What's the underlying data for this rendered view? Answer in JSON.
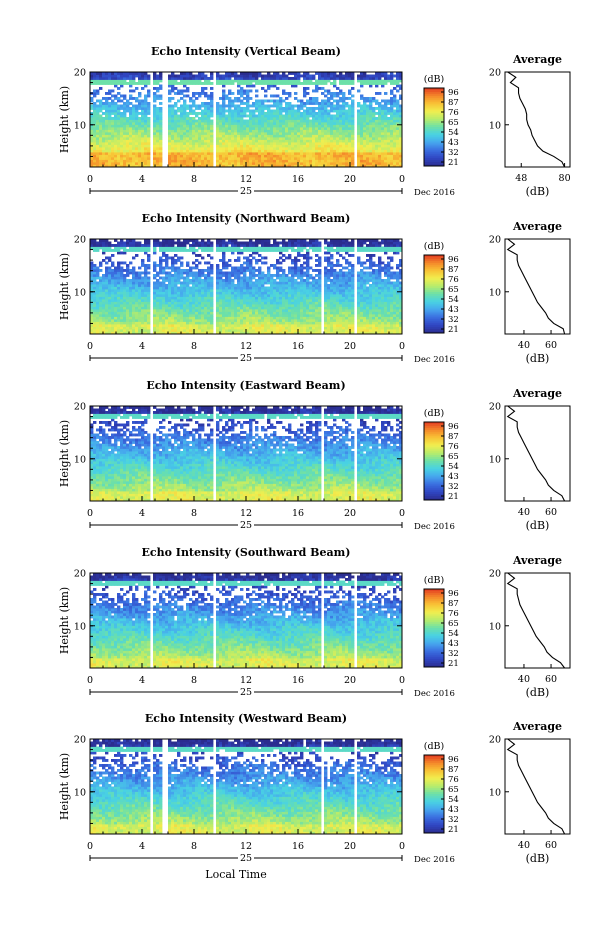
{
  "figure": {
    "bottom_xlabel": "Local Time"
  },
  "chart_data": [
    {
      "type": "heatmap",
      "title": "Echo Intensity (Vertical Beam)",
      "ylabel": "Height (km)",
      "xlim": [
        0,
        24
      ],
      "ylim": [
        2,
        20
      ],
      "x_ticks": [
        "0",
        "4",
        "8",
        "12",
        "16",
        "20",
        "0"
      ],
      "y_ticks": [
        "10",
        "20"
      ],
      "date_label": "25",
      "month_label": "Dec 2016",
      "colorbar": {
        "unit": "(dB)",
        "ticks": [
          "96",
          "87",
          "76",
          "65",
          "54",
          "43",
          "32",
          "21"
        ]
      },
      "data_gaps_hours": [
        [
          4.6,
          4.9
        ],
        [
          5.6,
          5.9
        ],
        [
          9.5,
          9.8
        ],
        [
          20.3,
          20.6
        ]
      ],
      "profile": {
        "title": "Average",
        "xlabel": "(dB)",
        "xlim": [
          36,
          84
        ],
        "x_ticks": [
          "48",
          "80"
        ],
        "heights": [
          2,
          3,
          4,
          5,
          6,
          7,
          8,
          9,
          10,
          11,
          12,
          13,
          14,
          15,
          16,
          17,
          18,
          19,
          20
        ],
        "values": [
          80,
          78,
          72,
          64,
          60,
          58,
          56,
          55,
          53,
          52,
          52,
          51,
          49,
          47,
          46,
          46,
          40,
          44,
          38
        ]
      }
    },
    {
      "type": "heatmap",
      "title": "Echo Intensity (Northward Beam)",
      "ylabel": "Height (km)",
      "xlim": [
        0,
        24
      ],
      "ylim": [
        2,
        20
      ],
      "x_ticks": [
        "0",
        "4",
        "8",
        "12",
        "16",
        "20",
        "0"
      ],
      "y_ticks": [
        "10",
        "20"
      ],
      "date_label": "25",
      "month_label": "Dec 2016",
      "colorbar": {
        "unit": "(dB)",
        "ticks": [
          "96",
          "87",
          "76",
          "65",
          "54",
          "43",
          "32",
          "21"
        ]
      },
      "data_gaps_hours": [
        [
          4.6,
          4.9
        ],
        [
          9.5,
          9.8
        ],
        [
          17.7,
          18.0
        ],
        [
          20.3,
          20.6
        ]
      ],
      "profile": {
        "title": "Average",
        "xlabel": "(dB)",
        "xlim": [
          26,
          74
        ],
        "x_ticks": [
          "40",
          "60"
        ],
        "heights": [
          2,
          3,
          4,
          5,
          6,
          7,
          8,
          9,
          10,
          11,
          12,
          13,
          14,
          15,
          16,
          17,
          18,
          19,
          20
        ],
        "values": [
          70,
          69,
          62,
          58,
          56,
          53,
          50,
          48,
          46,
          44,
          42,
          40,
          38,
          36,
          35,
          35,
          28,
          33,
          28
        ]
      }
    },
    {
      "type": "heatmap",
      "title": "Echo Intensity (Eastward Beam)",
      "ylabel": "Height (km)",
      "xlim": [
        0,
        24
      ],
      "ylim": [
        2,
        20
      ],
      "x_ticks": [
        "0",
        "4",
        "8",
        "12",
        "16",
        "20",
        "0"
      ],
      "y_ticks": [
        "10",
        "20"
      ],
      "date_label": "25",
      "month_label": "Dec 2016",
      "colorbar": {
        "unit": "(dB)",
        "ticks": [
          "96",
          "87",
          "76",
          "65",
          "54",
          "43",
          "32",
          "21"
        ]
      },
      "data_gaps_hours": [
        [
          4.6,
          4.9
        ],
        [
          9.5,
          9.8
        ],
        [
          17.7,
          18.0
        ],
        [
          20.3,
          20.6
        ]
      ],
      "profile": {
        "title": "Average",
        "xlabel": "(dB)",
        "xlim": [
          26,
          74
        ],
        "x_ticks": [
          "40",
          "60"
        ],
        "heights": [
          2,
          3,
          4,
          5,
          6,
          7,
          8,
          9,
          10,
          11,
          12,
          13,
          14,
          15,
          16,
          17,
          18,
          19,
          20
        ],
        "values": [
          70,
          68,
          62,
          58,
          56,
          53,
          50,
          48,
          46,
          44,
          42,
          40,
          38,
          36,
          35,
          35,
          28,
          33,
          28
        ]
      }
    },
    {
      "type": "heatmap",
      "title": "Echo Intensity (Southward Beam)",
      "ylabel": "Height (km)",
      "xlim": [
        0,
        24
      ],
      "ylim": [
        2,
        20
      ],
      "x_ticks": [
        "0",
        "4",
        "8",
        "12",
        "16",
        "20",
        "0"
      ],
      "y_ticks": [
        "10",
        "20"
      ],
      "date_label": "25",
      "month_label": "Dec 2016",
      "colorbar": {
        "unit": "(dB)",
        "ticks": [
          "96",
          "87",
          "76",
          "65",
          "54",
          "43",
          "32",
          "21"
        ]
      },
      "data_gaps_hours": [
        [
          4.6,
          4.9
        ],
        [
          9.5,
          9.8
        ],
        [
          17.7,
          18.0
        ],
        [
          20.3,
          20.6
        ]
      ],
      "profile": {
        "title": "Average",
        "xlabel": "(dB)",
        "xlim": [
          26,
          74
        ],
        "x_ticks": [
          "40",
          "60"
        ],
        "heights": [
          2,
          3,
          4,
          5,
          6,
          7,
          8,
          9,
          10,
          11,
          12,
          13,
          14,
          15,
          16,
          17,
          18,
          19,
          20
        ],
        "values": [
          70,
          67,
          61,
          57,
          55,
          52,
          49,
          47,
          45,
          43,
          41,
          39,
          37,
          36,
          35,
          35,
          28,
          33,
          28
        ]
      }
    },
    {
      "type": "heatmap",
      "title": "Echo Intensity (Westward Beam)",
      "ylabel": "Height (km)",
      "xlim": [
        0,
        24
      ],
      "ylim": [
        2,
        20
      ],
      "x_ticks": [
        "0",
        "4",
        "8",
        "12",
        "16",
        "20",
        "0"
      ],
      "y_ticks": [
        "10",
        "20"
      ],
      "date_label": "25",
      "month_label": "Dec 2016",
      "colorbar": {
        "unit": "(dB)",
        "ticks": [
          "96",
          "87",
          "76",
          "65",
          "54",
          "43",
          "32",
          "21"
        ]
      },
      "data_gaps_hours": [
        [
          4.6,
          4.9
        ],
        [
          5.6,
          5.9
        ],
        [
          9.5,
          9.8
        ],
        [
          17.7,
          18.0
        ],
        [
          20.3,
          20.6
        ]
      ],
      "profile": {
        "title": "Average",
        "xlabel": "(dB)",
        "xlim": [
          26,
          74
        ],
        "x_ticks": [
          "40",
          "60"
        ],
        "heights": [
          2,
          3,
          4,
          5,
          6,
          7,
          8,
          9,
          10,
          11,
          12,
          13,
          14,
          15,
          16,
          17,
          18,
          19,
          20
        ],
        "values": [
          70,
          68,
          62,
          58,
          56,
          53,
          50,
          48,
          46,
          44,
          42,
          40,
          38,
          36,
          35,
          35,
          28,
          33,
          28
        ]
      }
    }
  ]
}
